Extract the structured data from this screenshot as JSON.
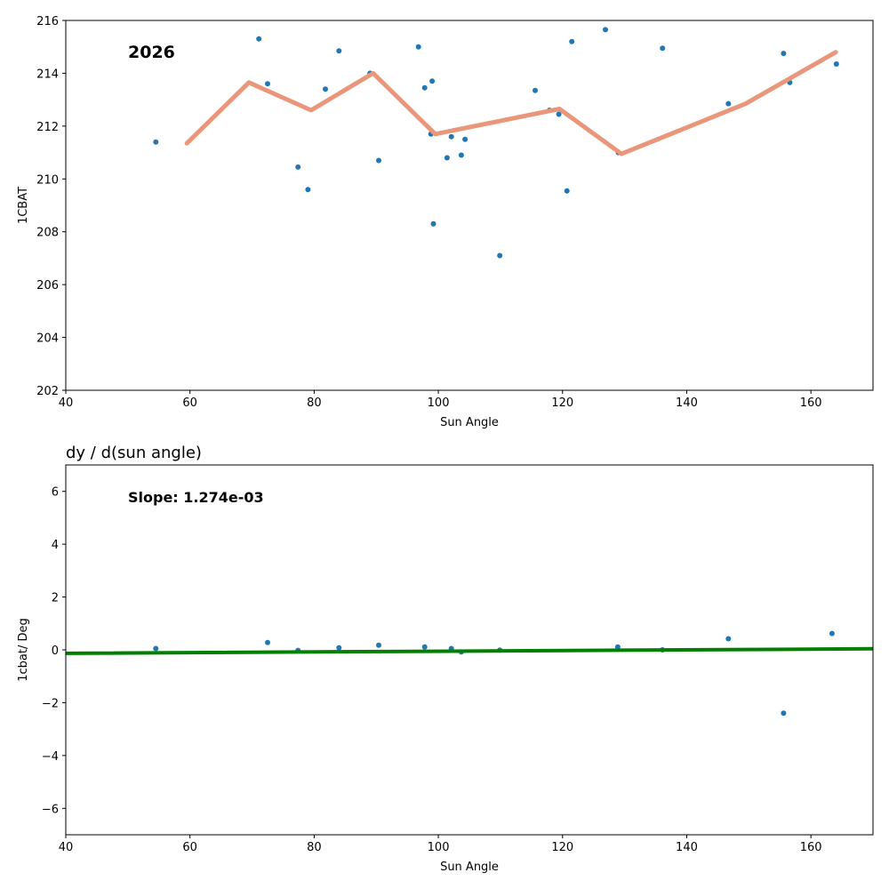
{
  "chart_data": [
    {
      "type": "scatter",
      "title": "",
      "annotation": "2026",
      "xlabel": "Sun Angle",
      "ylabel": "1CBAT",
      "xlim": [
        40,
        170
      ],
      "ylim": [
        202,
        216
      ],
      "xticks": [
        40,
        60,
        80,
        100,
        120,
        140,
        160
      ],
      "yticks": [
        202,
        204,
        206,
        208,
        210,
        212,
        214,
        216
      ],
      "points": {
        "name": "1CBAT samples",
        "color": "#1f77b4",
        "x": [
          54.5,
          71.1,
          72.5,
          77.4,
          79.0,
          81.8,
          84.0,
          89.0,
          90.4,
          96.8,
          97.8,
          98.8,
          99.0,
          99.2,
          101.4,
          102.1,
          103.7,
          104.3,
          109.9,
          115.6,
          117.9,
          119.4,
          120.7,
          121.5,
          126.9,
          129.0,
          136.1,
          146.7,
          155.6,
          156.6,
          164.1
        ],
        "y": [
          211.4,
          215.3,
          213.6,
          210.45,
          209.6,
          213.4,
          214.85,
          214.0,
          210.7,
          215.0,
          213.45,
          211.7,
          213.7,
          208.3,
          210.8,
          211.6,
          210.9,
          211.5,
          207.1,
          213.35,
          212.6,
          212.45,
          209.55,
          215.2,
          215.65,
          211.0,
          214.95,
          212.85,
          214.75,
          213.65,
          214.35
        ]
      },
      "line": {
        "name": "binned mean",
        "color": "#e9967a",
        "x": [
          59.5,
          69.5,
          79.5,
          89.5,
          99.5,
          119.5,
          129.5,
          149.5,
          164.0
        ],
        "y": [
          211.35,
          213.65,
          212.6,
          214.0,
          211.7,
          212.65,
          210.95,
          212.85,
          214.8
        ]
      }
    },
    {
      "type": "scatter",
      "title": "dy / d(sun angle)",
      "annotation": "Slope: 1.274e-03",
      "xlabel": "Sun Angle",
      "ylabel": "1cbat/ Deg",
      "xlim": [
        40,
        170
      ],
      "ylim": [
        -7,
        7
      ],
      "xticks": [
        40,
        60,
        80,
        100,
        120,
        140,
        160
      ],
      "yticks": [
        -6,
        -4,
        -2,
        0,
        2,
        4,
        6
      ],
      "points": {
        "name": "derivative samples",
        "color": "#1f77b4",
        "x": [
          54.5,
          72.5,
          77.4,
          84.0,
          90.4,
          97.8,
          102.1,
          103.7,
          109.9,
          128.9,
          136.1,
          146.7,
          155.6,
          163.4
        ],
        "y": [
          0.05,
          0.28,
          -0.02,
          0.08,
          0.18,
          0.11,
          0.05,
          -0.08,
          -0.01,
          0.11,
          0.0,
          0.42,
          -2.4,
          0.62
        ]
      },
      "line": {
        "name": "linear fit",
        "color": "#007f00",
        "x": [
          40,
          170
        ],
        "y": [
          -0.13,
          0.04
        ]
      }
    }
  ]
}
